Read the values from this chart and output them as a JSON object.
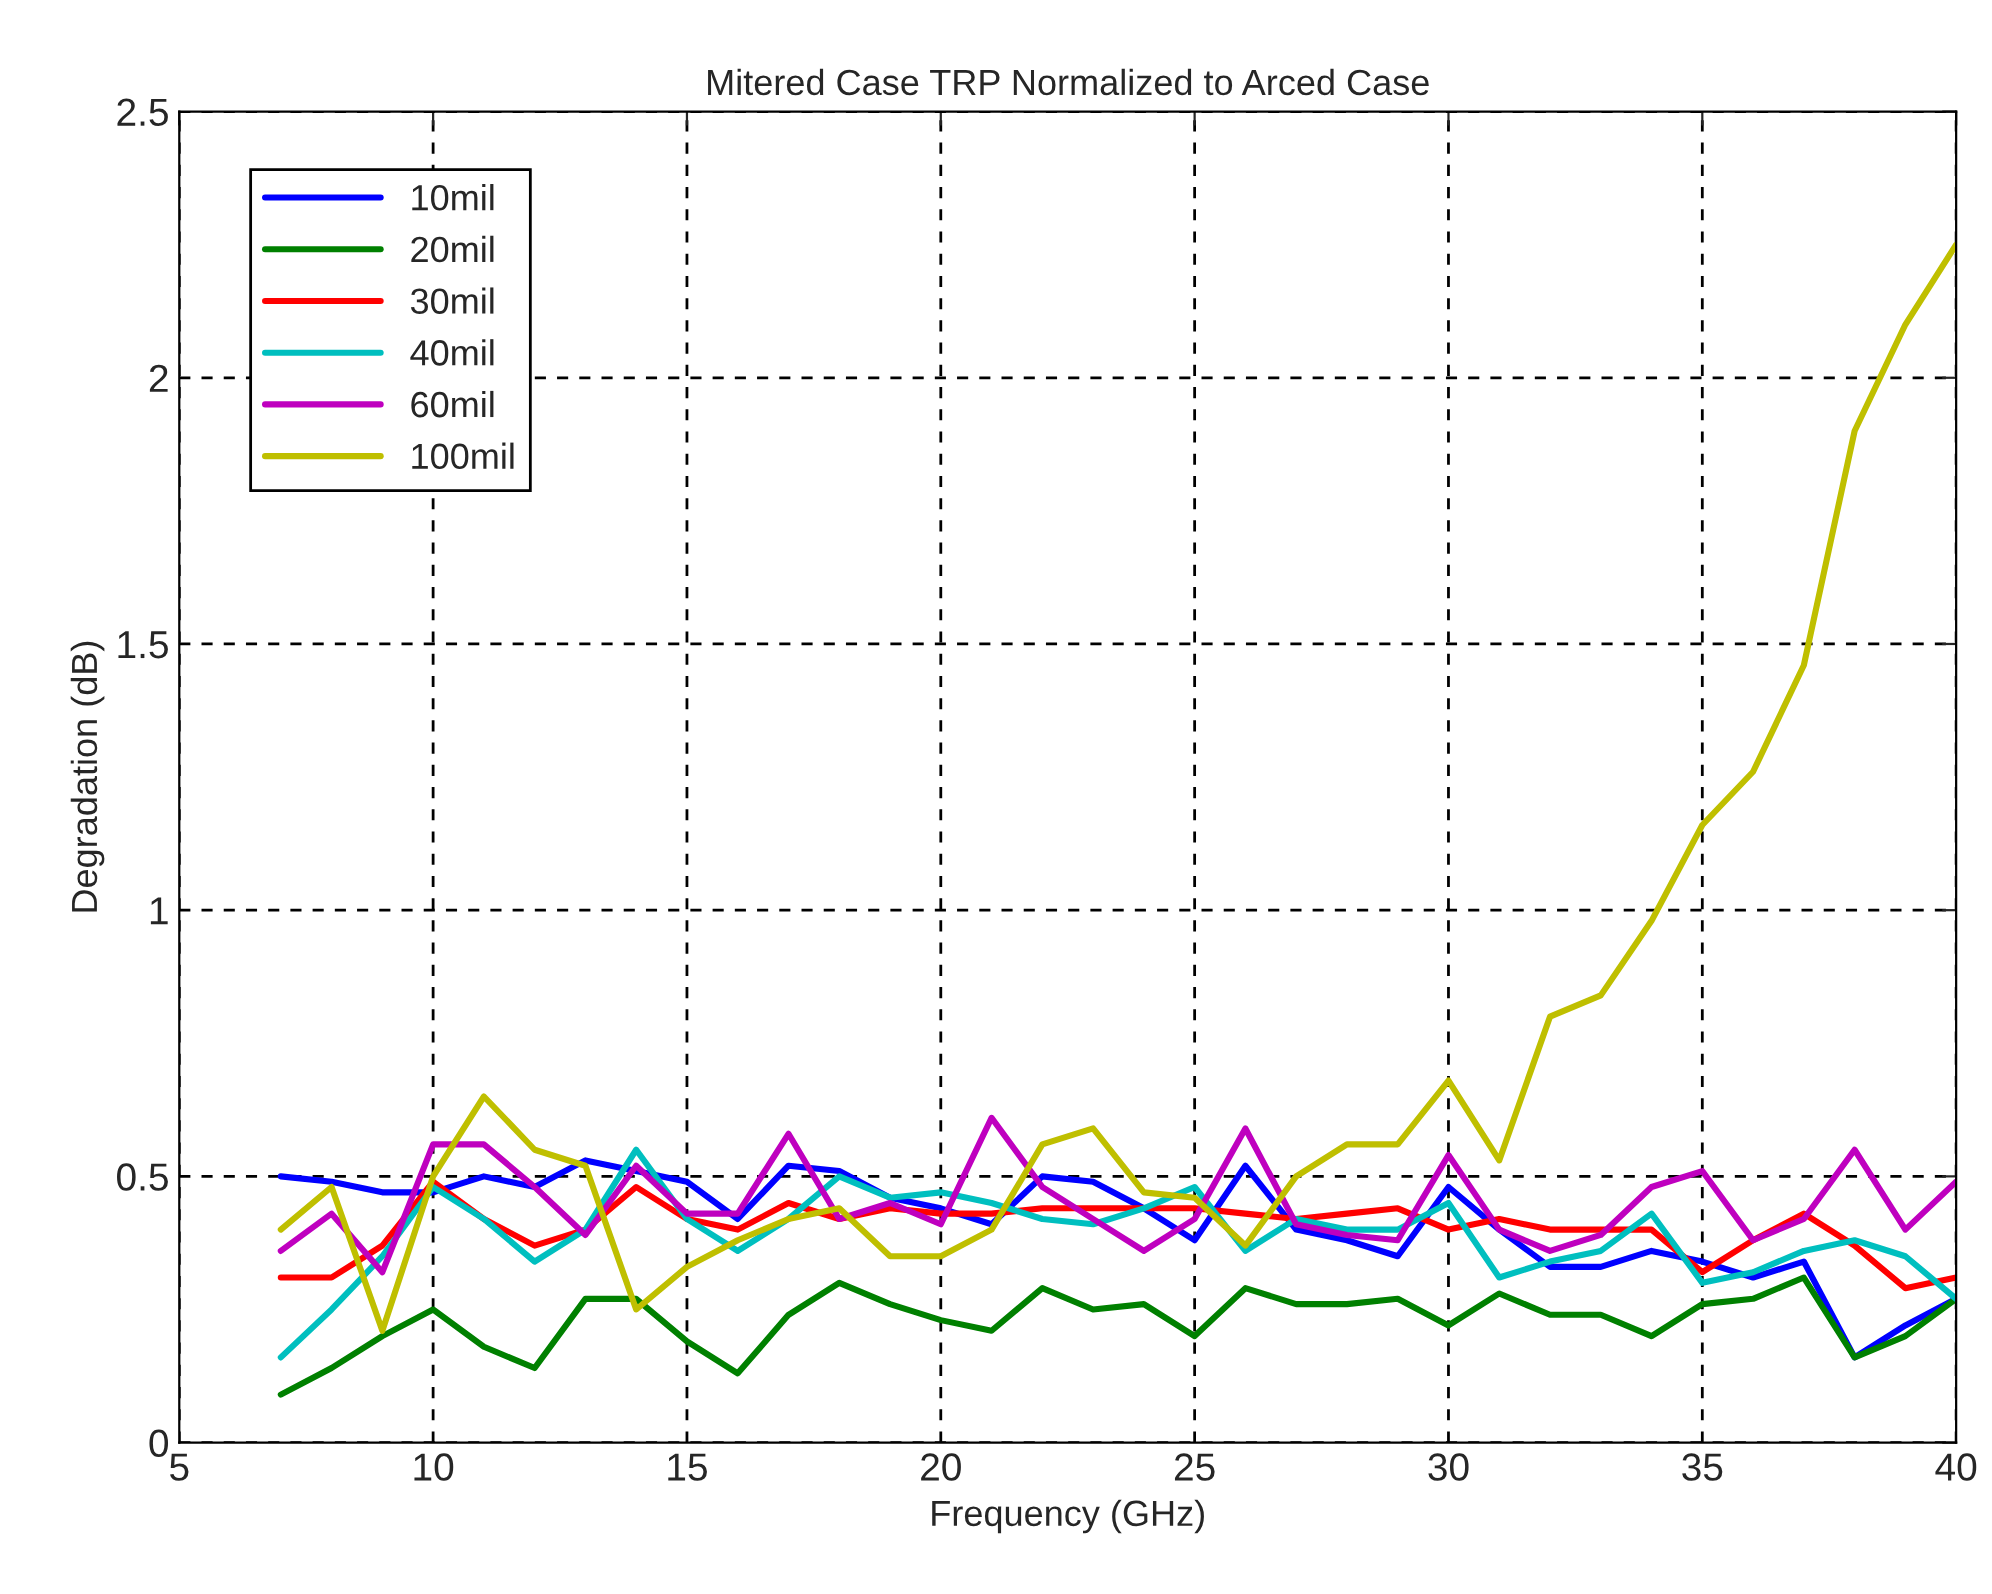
{
  "chart_data": {
    "type": "line",
    "title": "Mitered Case TRP Normalized to Arced Case",
    "xlabel": "Frequency (GHz)",
    "ylabel": "Degradation (dB)",
    "x": [
      7,
      8,
      9,
      10,
      11,
      12,
      13,
      14,
      15,
      16,
      17,
      18,
      19,
      20,
      21,
      22,
      23,
      24,
      25,
      26,
      27,
      28,
      29,
      30,
      31,
      32,
      33,
      34,
      35,
      36,
      37,
      38,
      39,
      40
    ],
    "series": [
      {
        "name": "10mil",
        "color": "#0000ff",
        "values": [
          0.5,
          0.49,
          0.47,
          0.47,
          0.5,
          0.48,
          0.53,
          0.51,
          0.49,
          0.42,
          0.52,
          0.51,
          0.46,
          0.44,
          0.41,
          0.5,
          0.49,
          0.44,
          0.38,
          0.52,
          0.4,
          0.38,
          0.35,
          0.48,
          0.4,
          0.33,
          0.33,
          0.36,
          0.34,
          0.31,
          0.34,
          0.16,
          0.22,
          0.27
        ]
      },
      {
        "name": "20mil",
        "color": "#008000",
        "values": [
          0.09,
          0.14,
          0.2,
          0.25,
          0.18,
          0.14,
          0.27,
          0.27,
          0.19,
          0.13,
          0.24,
          0.3,
          0.26,
          0.23,
          0.21,
          0.29,
          0.25,
          0.26,
          0.2,
          0.29,
          0.26,
          0.26,
          0.27,
          0.22,
          0.28,
          0.24,
          0.24,
          0.2,
          0.26,
          0.27,
          0.31,
          0.16,
          0.2,
          0.27
        ]
      },
      {
        "name": "30mil",
        "color": "#ff0000",
        "values": [
          0.31,
          0.31,
          0.37,
          0.49,
          0.42,
          0.37,
          0.4,
          0.48,
          0.42,
          0.4,
          0.45,
          0.42,
          0.44,
          0.43,
          0.43,
          0.44,
          0.44,
          0.44,
          0.44,
          0.43,
          0.42,
          0.43,
          0.44,
          0.4,
          0.42,
          0.4,
          0.4,
          0.4,
          0.32,
          0.38,
          0.43,
          0.37,
          0.29,
          0.31
        ]
      },
      {
        "name": "40mil",
        "color": "#00bfbf",
        "values": [
          0.16,
          0.25,
          0.35,
          0.48,
          0.42,
          0.34,
          0.4,
          0.55,
          0.42,
          0.36,
          0.42,
          0.5,
          0.46,
          0.47,
          0.45,
          0.42,
          0.41,
          0.44,
          0.48,
          0.36,
          0.42,
          0.4,
          0.4,
          0.45,
          0.31,
          0.34,
          0.36,
          0.43,
          0.3,
          0.32,
          0.36,
          0.38,
          0.35,
          0.27
        ]
      },
      {
        "name": "60mil",
        "color": "#bf00bf",
        "values": [
          0.36,
          0.43,
          0.32,
          0.56,
          0.56,
          0.48,
          0.39,
          0.52,
          0.43,
          0.43,
          0.58,
          0.42,
          0.45,
          0.41,
          0.61,
          0.48,
          0.42,
          0.36,
          0.42,
          0.59,
          0.41,
          0.39,
          0.38,
          0.54,
          0.4,
          0.36,
          0.39,
          0.48,
          0.51,
          0.38,
          0.42,
          0.55,
          0.4,
          0.49
        ]
      },
      {
        "name": "100mil",
        "color": "#bfbf00",
        "values": [
          0.4,
          0.48,
          0.21,
          0.5,
          0.65,
          0.55,
          0.52,
          0.25,
          0.33,
          0.38,
          0.42,
          0.44,
          0.35,
          0.35,
          0.4,
          0.56,
          0.59,
          0.47,
          0.46,
          0.37,
          0.5,
          0.56,
          0.56,
          0.68,
          0.53,
          0.8,
          0.84,
          0.98,
          1.16,
          1.26,
          1.46,
          1.9,
          2.1,
          2.25
        ]
      }
    ],
    "xlim": [
      5,
      40
    ],
    "ylim": [
      0,
      2.5
    ],
    "xticks": [
      5,
      10,
      15,
      20,
      25,
      30,
      35,
      40
    ],
    "yticks": [
      0,
      0.5,
      1,
      1.5,
      2,
      2.5
    ],
    "grid": true,
    "legend": "top left",
    "line_style": "solid",
    "marker": "none"
  }
}
